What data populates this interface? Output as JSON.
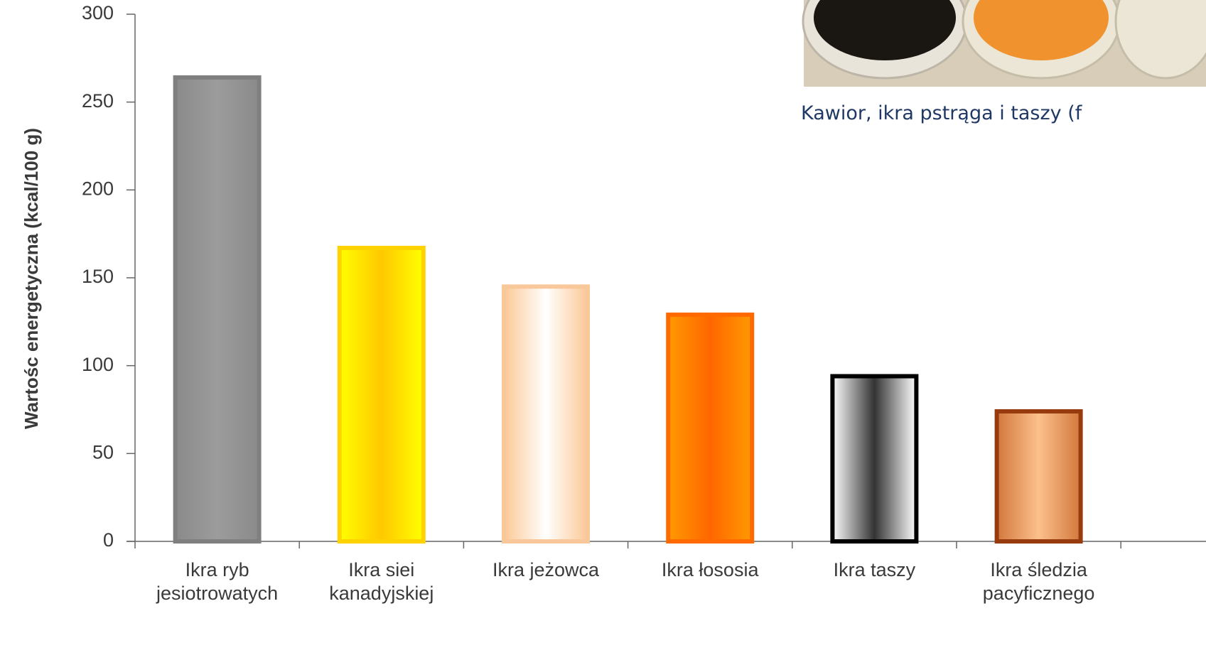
{
  "chart_data": {
    "type": "bar",
    "y_label": "Wartośc energetyczna (kcal/100 g)",
    "annotation": "Kawior, ikra pstrąga i taszy (f",
    "categories": [
      "Ikra ryb\njesiotrowatych",
      "Ikra siei\nkanadyjskiej",
      "Ikra jeżowca",
      "Ikra łososia",
      "Ikra taszy",
      "Ikra śledzia\npacyficznego"
    ],
    "values": [
      264,
      167,
      145,
      129,
      94,
      74
    ],
    "bar_styles": [
      {
        "stroke": "#7f7f7f",
        "edge": "#8a8a8a",
        "center": "#9c9c9c"
      },
      {
        "stroke": "#ffd200",
        "edge": "#ffff00",
        "center": "#ffc800"
      },
      {
        "stroke": "#f9c89a",
        "edge": "#fcc896",
        "center": "#ffffff"
      },
      {
        "stroke": "#ff6a00",
        "edge": "#ff9a00",
        "center": "#ff6600"
      },
      {
        "stroke": "#000000",
        "edge": "#ffffff",
        "center": "#333333"
      },
      {
        "stroke": "#973a0e",
        "edge": "#d2783c",
        "center": "#fcc08c"
      }
    ],
    "ylim": [
      0,
      300
    ],
    "yticks": [
      0,
      50,
      100,
      150,
      200,
      250,
      300
    ],
    "grid": false
  }
}
